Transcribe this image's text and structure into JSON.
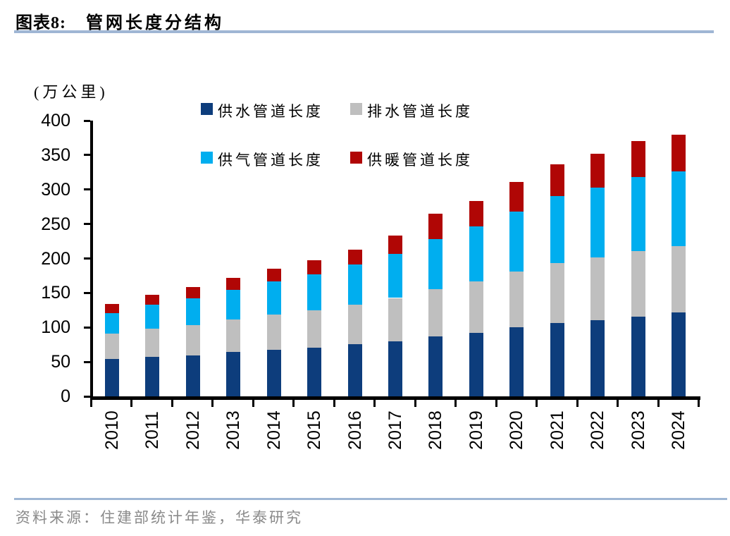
{
  "title": {
    "prefix": "图表8:",
    "text": "管网长度分结构"
  },
  "footer": {
    "source": "资料来源：住建部统计年鉴，华泰研究"
  },
  "colors": {
    "rule_blue": "#9fb6d4",
    "footer_gray": "#8a8a8a",
    "axis_black": "#000000"
  },
  "chart_data": {
    "type": "bar",
    "stacked": true,
    "title": "管网长度分结构",
    "unit_label": "(万公里)",
    "grid": false,
    "legend_position": "top-center-two-rows",
    "ylim": [
      0,
      400
    ],
    "yticks": [
      0,
      50,
      100,
      150,
      200,
      250,
      300,
      350,
      400
    ],
    "categories": [
      "2010",
      "2011",
      "2012",
      "2013",
      "2014",
      "2015",
      "2016",
      "2017",
      "2018",
      "2019",
      "2020",
      "2021",
      "2022",
      "2023",
      "2024"
    ],
    "series": [
      {
        "name": "供水管道长度",
        "color": "#0d3d7c",
        "values": [
          53.8,
          57.3,
          59.1,
          64.6,
          67.7,
          71.0,
          75.7,
          79.7,
          86.7,
          92.0,
          100.7,
          106.0,
          110.3,
          116.1,
          121.6
        ]
      },
      {
        "name": "排水管道长度",
        "color": "#bfbfbf",
        "values": [
          37.0,
          41.4,
          44.0,
          46.5,
          51.1,
          54.0,
          57.7,
          63.0,
          68.3,
          74.4,
          80.3,
          87.2,
          91.4,
          94.6,
          96.6
        ]
      },
      {
        "name": "供气管道长度",
        "color": "#00aeef",
        "values": [
          29.8,
          34.4,
          39.4,
          43.4,
          47.5,
          52.2,
          57.6,
          64.0,
          73.2,
          80.3,
          87.2,
          97.1,
          101.0,
          107.4,
          108.5
        ]
      },
      {
        "name": "供暖管道长度",
        "color": "#b00605",
        "values": [
          13.9,
          14.7,
          16.0,
          17.7,
          18.6,
          19.8,
          21.4,
          26.4,
          37.1,
          36.9,
          42.6,
          46.3,
          49.3,
          52.2,
          52.9
        ]
      }
    ]
  }
}
